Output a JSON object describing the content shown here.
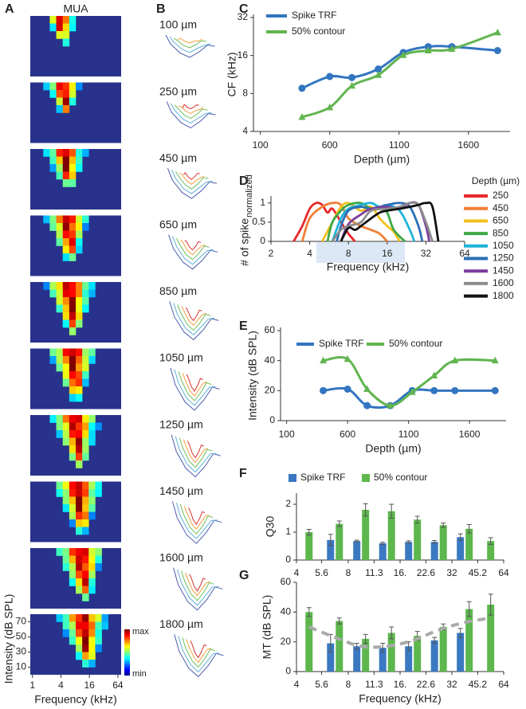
{
  "chart_data": [
    {
      "panel": "A",
      "type": "heatmap",
      "title": "MUA",
      "xlabel": "Frequency (kHz)",
      "ylabel": "Intensity (dB SPL)",
      "log_x": true,
      "xlim": [
        0.9,
        75
      ],
      "xticks": [
        1,
        4,
        16,
        64
      ],
      "ylim": [
        0,
        80
      ],
      "yticks": [
        10,
        30,
        50,
        70
      ],
      "colorbar_labels": [
        "max",
        "min"
      ]
    },
    {
      "panel": "B",
      "type": "contour",
      "labels": [
        "100 µm",
        "250 µm",
        "450 µm",
        "650 µm",
        "850 µm",
        "1050 µm",
        "1250 µm",
        "1450 µm",
        "1600 µm",
        "1800 µm"
      ]
    },
    {
      "panel": "C",
      "type": "line",
      "xlabel": "Depth (µm)",
      "ylabel": "CF (kHz)",
      "legend": "top-left",
      "x": [
        400,
        600,
        760,
        950,
        1130,
        1310,
        1480,
        1810
      ],
      "xlim": [
        50,
        1900
      ],
      "xticks": [
        100,
        600,
        1100,
        1600
      ],
      "log_y": true,
      "ylim": [
        4,
        32
      ],
      "yticks": [
        4,
        8,
        16,
        32
      ],
      "series": [
        {
          "name": "Spike TRF",
          "color": "#3275c0",
          "marker": "circle",
          "values": [
            8.8,
            10.9,
            10.7,
            12.5,
            16.9,
            18.8,
            18.8,
            17.5
          ]
        },
        {
          "name": "50% contour",
          "color": "#62b550",
          "marker": "triangle",
          "values": [
            5.2,
            6.2,
            9.2,
            11.2,
            16.1,
            17.5,
            18.0,
            24.3
          ]
        }
      ]
    },
    {
      "panel": "D",
      "type": "line",
      "xlabel": "Frequency (kHz)",
      "ylabel": "# of spike",
      "ylabel_sub": "normalized",
      "legend_title": "Depth (µm)",
      "legend": "right",
      "log_x": true,
      "xlim": [
        2,
        64
      ],
      "xticks": [
        2,
        4,
        8,
        16,
        32,
        64
      ],
      "ylim": [
        0,
        1.1
      ],
      "yticks": [
        0,
        0.5,
        1
      ],
      "highlight": [
        4.5,
        22
      ],
      "highlight_color": "#dce8f6",
      "series": [
        {
          "name": "250",
          "color": "#e8282b",
          "x": [
            3,
            3.5,
            4,
            4.5,
            5,
            5.5,
            6,
            7,
            8,
            9
          ],
          "values": [
            0,
            0.4,
            0.85,
            1,
            0.95,
            0.75,
            0.85,
            0.5,
            0.2,
            0
          ]
        },
        {
          "name": "450",
          "color": "#f07f35",
          "x": [
            3.5,
            4,
            5,
            6,
            7,
            8,
            10,
            12,
            14,
            16
          ],
          "values": [
            0,
            0.6,
            0.9,
            1,
            0.95,
            0.6,
            0.4,
            0.3,
            0.2,
            0
          ]
        },
        {
          "name": "650",
          "color": "#f2c01c",
          "x": [
            5,
            6,
            7,
            8,
            10,
            12,
            14,
            16,
            18,
            20
          ],
          "values": [
            0,
            0.5,
            0.9,
            1,
            0.8,
            0.9,
            0.6,
            0.4,
            0.25,
            0
          ]
        },
        {
          "name": "850",
          "color": "#3ea845",
          "x": [
            5.5,
            6,
            7,
            8,
            10,
            12,
            14,
            16,
            18,
            22
          ],
          "values": [
            0,
            0.5,
            0.8,
            0.95,
            1,
            0.85,
            0.9,
            0.75,
            0.3,
            0
          ]
        },
        {
          "name": "1050",
          "color": "#1fb3d8",
          "x": [
            6,
            7,
            8,
            10,
            12,
            14,
            16,
            20,
            24,
            26
          ],
          "values": [
            0,
            0.6,
            0.85,
            0.95,
            1,
            0.9,
            0.95,
            0.8,
            0.3,
            0
          ]
        },
        {
          "name": "1250",
          "color": "#2a6fb7",
          "x": [
            6.5,
            7,
            8,
            10,
            12,
            16,
            20,
            24,
            28,
            30
          ],
          "values": [
            0,
            0.4,
            0.8,
            0.9,
            0.85,
            0.95,
            1,
            0.9,
            0.4,
            0
          ]
        },
        {
          "name": "1450",
          "color": "#7a3c9c",
          "x": [
            7,
            8,
            10,
            12,
            16,
            20,
            24,
            28,
            32,
            34
          ],
          "values": [
            0,
            0.45,
            0.7,
            0.85,
            0.9,
            0.85,
            1,
            0.95,
            0.4,
            0
          ]
        },
        {
          "name": "1600",
          "color": "#8c8c8c",
          "x": [
            6,
            7,
            8,
            10,
            12,
            16,
            20,
            24,
            28,
            32,
            36
          ],
          "values": [
            0,
            0.3,
            0.4,
            0.5,
            0.8,
            0.85,
            0.9,
            1,
            0.95,
            0.5,
            0
          ]
        },
        {
          "name": "1800",
          "color": "#111111",
          "x": [
            7,
            8,
            9,
            10,
            12,
            14,
            16,
            20,
            24,
            28,
            32,
            36,
            40
          ],
          "values": [
            0,
            0.35,
            0.3,
            0.4,
            0.6,
            0.75,
            0.8,
            0.85,
            0.9,
            0.95,
            1,
            0.9,
            0
          ]
        }
      ]
    },
    {
      "panel": "E",
      "type": "line",
      "xlabel": "Depth (µm)",
      "ylabel": "Intensity (dB SPL)",
      "legend": "top",
      "x": [
        400,
        600,
        760,
        950,
        1130,
        1310,
        1480,
        1810
      ],
      "xlim": [
        50,
        1900
      ],
      "xticks": [
        100,
        600,
        1100,
        1600
      ],
      "ylim": [
        0,
        60
      ],
      "yticks": [
        0,
        20,
        40,
        60
      ],
      "series": [
        {
          "name": "Spike TRF",
          "color": "#3275c0",
          "marker": "circle",
          "values": [
            20,
            21,
            10,
            10,
            20,
            20,
            20,
            20
          ]
        },
        {
          "name": "50% contour",
          "color": "#62b550",
          "marker": "triangle",
          "values": [
            40,
            41,
            21,
            10,
            19,
            30,
            40,
            40
          ]
        }
      ]
    },
    {
      "panel": "F",
      "type": "bar",
      "ylabel": "Q30",
      "legend": "top",
      "log_x": true,
      "xlim": [
        4,
        64
      ],
      "xticks": [
        4,
        5.6,
        8,
        11.3,
        {
          "value": 16,
          "label": "16."
        },
        22.6,
        32,
        45.2,
        64
      ],
      "ylim": [
        0,
        2.4
      ],
      "yticks": [
        0,
        1,
        2
      ],
      "series": [
        {
          "name": "Spike TRF",
          "color": "#3a78c2",
          "values": [
            null,
            0.72,
            0.68,
            0.6,
            0.65,
            0.65,
            0.82,
            null
          ],
          "errors": [
            null,
            0.2,
            0.03,
            0.04,
            0.04,
            0.05,
            0.12,
            null
          ]
        },
        {
          "name": "50% contour",
          "color": "#5db74d",
          "values": [
            1.0,
            1.3,
            1.8,
            1.75,
            1.45,
            1.25,
            1.12,
            0.68
          ],
          "errors": [
            0.1,
            0.1,
            0.22,
            0.25,
            0.12,
            0.08,
            0.15,
            0.12
          ]
        }
      ]
    },
    {
      "panel": "G",
      "type": "bar",
      "xlabel": "Frequency (kHz)",
      "ylabel": "MT (dB SPL)",
      "log_x": true,
      "xlim": [
        4,
        64
      ],
      "xticks": [
        4,
        5.6,
        8,
        11.3,
        {
          "value": 16,
          "label": "16."
        },
        22.6,
        32,
        45.2,
        64
      ],
      "ylim": [
        0,
        60
      ],
      "yticks": [
        0,
        20,
        40,
        60
      ],
      "series": [
        {
          "color": "#3a78c2",
          "values": [
            null,
            19,
            17,
            16,
            17,
            21,
            26,
            null
          ],
          "errors": [
            null,
            6,
            2,
            3,
            3,
            2,
            3,
            null
          ]
        },
        {
          "color": "#5db74d",
          "values": [
            40,
            34,
            22,
            26,
            24,
            30,
            42,
            45
          ],
          "errors": [
            3,
            2,
            3,
            4,
            3,
            2,
            5,
            7
          ]
        }
      ],
      "trend": {
        "color": "#aaaaaa",
        "values": [
          30,
          23,
          17,
          17,
          21,
          28,
          33,
          36
        ]
      }
    }
  ]
}
